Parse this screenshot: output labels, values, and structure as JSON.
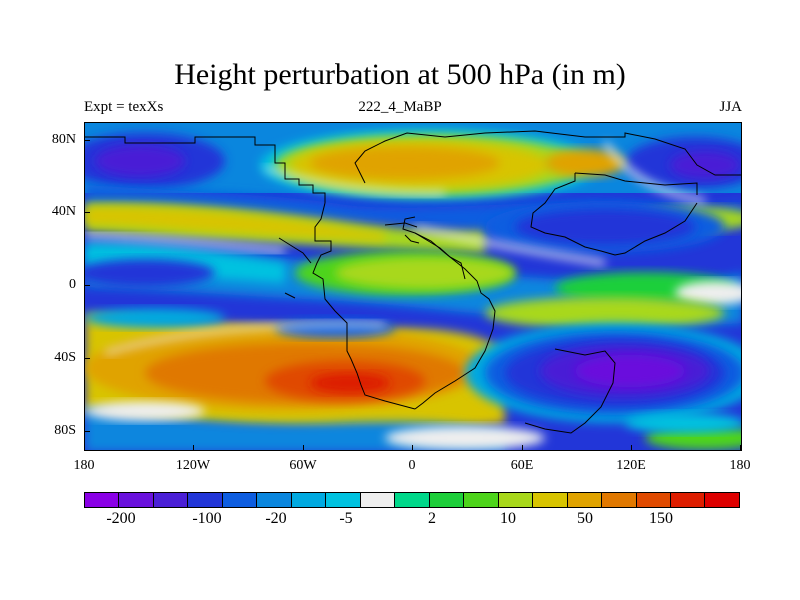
{
  "title": "Height perturbation at 500 hPa (in m)",
  "subtitle_left": "Expt = texXs",
  "subtitle_center": "222_4_MaBP",
  "subtitle_right": "JJA",
  "y_ticks": [
    "80N",
    "40N",
    "0",
    "40S",
    "80S"
  ],
  "x_ticks": [
    "180",
    "120W",
    "60W",
    "0",
    "60E",
    "120E",
    "180"
  ],
  "colorbar": {
    "colors": [
      "#8a00e6",
      "#6a11dd",
      "#4a1fd6",
      "#2236d8",
      "#0d5de0",
      "#0a86de",
      "#00a9e0",
      "#00c2e0",
      "#eeeeee",
      "#00d88a",
      "#1ecf3a",
      "#4dd41a",
      "#a8d81a",
      "#d8c400",
      "#e0a300",
      "#e07800",
      "#e04a00",
      "#dd1e00",
      "#dd0000"
    ],
    "labels": [
      "-200",
      "-100",
      "-20",
      "-5",
      "2",
      "10",
      "50",
      "150"
    ]
  }
}
